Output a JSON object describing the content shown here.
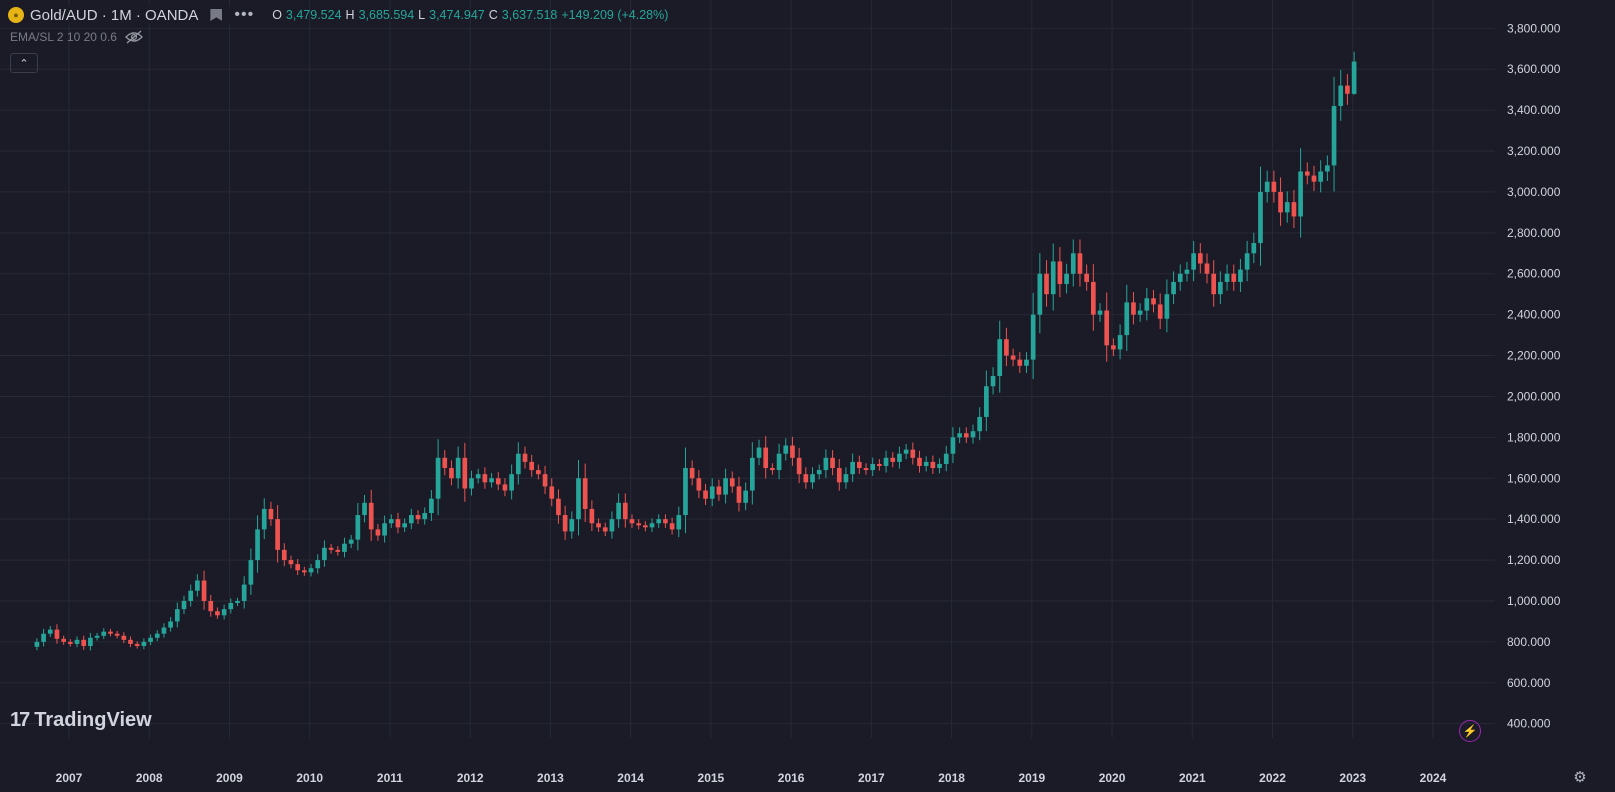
{
  "header": {
    "symbol": "Gold/AUD · 1M · OANDA",
    "ohlc": {
      "o_label": "O",
      "o": "3,479.524",
      "h_label": "H",
      "h": "3,685.594",
      "l_label": "L",
      "l": "3,474.947",
      "c_label": "C",
      "c": "3,637.518",
      "change": "+149.209 (+4.28%)"
    },
    "indicator": "EMA/SL 2 10 20 0.6"
  },
  "branding": {
    "logo_text": "TradingView"
  },
  "icons": {
    "coin": "gold-coin-icon",
    "flag": "flag-icon",
    "more": "more-icon",
    "eye": "eye-off-icon",
    "collapse": "chevron-up-icon",
    "bolt": "lightning-icon",
    "settings": "gear-icon"
  },
  "colors": {
    "background": "#1a1b27",
    "up": "#26a69a",
    "down": "#ef5350",
    "grid": "#262936",
    "axis_text": "#d1d4dc"
  },
  "chart_data": {
    "type": "candlestick",
    "timeframe": "1M",
    "y_ticks": [
      "400.000",
      "600.000",
      "800.000",
      "1,000.000",
      "1,200.000",
      "1,400.000",
      "1,600.000",
      "1,800.000",
      "2,000.000",
      "2,200.000",
      "2,400.000",
      "2,600.000",
      "2,800.000",
      "3,000.000",
      "3,200.000",
      "3,400.000",
      "3,600.000",
      "3,800.000"
    ],
    "x_ticks": [
      "2007",
      "2008",
      "2009",
      "2010",
      "2011",
      "2012",
      "2013",
      "2014",
      "2015",
      "2016",
      "2017",
      "2018",
      "2019",
      "2020",
      "2021",
      "2022",
      "2023",
      "2024"
    ],
    "ylim": [
      330,
      3870
    ],
    "x_start": 2006.6,
    "closes": [
      800,
      840,
      860,
      815,
      800,
      790,
      810,
      780,
      820,
      830,
      850,
      840,
      830,
      810,
      790,
      780,
      800,
      820,
      840,
      870,
      900,
      960,
      1000,
      1050,
      1100,
      1000,
      950,
      930,
      960,
      990,
      1000,
      1080,
      1200,
      1350,
      1450,
      1400,
      1250,
      1200,
      1180,
      1150,
      1140,
      1160,
      1200,
      1260,
      1250,
      1240,
      1280,
      1300,
      1420,
      1480,
      1350,
      1320,
      1380,
      1400,
      1360,
      1380,
      1420,
      1400,
      1430,
      1500,
      1700,
      1650,
      1600,
      1700,
      1550,
      1600,
      1620,
      1580,
      1600,
      1570,
      1540,
      1620,
      1720,
      1680,
      1640,
      1620,
      1560,
      1500,
      1420,
      1340,
      1400,
      1600,
      1450,
      1380,
      1360,
      1340,
      1400,
      1480,
      1400,
      1380,
      1370,
      1360,
      1380,
      1400,
      1380,
      1350,
      1420,
      1650,
      1600,
      1540,
      1500,
      1560,
      1520,
      1600,
      1560,
      1480,
      1540,
      1700,
      1750,
      1650,
      1640,
      1720,
      1760,
      1700,
      1620,
      1580,
      1620,
      1640,
      1700,
      1650,
      1580,
      1620,
      1680,
      1650,
      1640,
      1670,
      1660,
      1700,
      1680,
      1720,
      1740,
      1700,
      1660,
      1680,
      1650,
      1670,
      1720,
      1800,
      1820,
      1800,
      1830,
      1900,
      2050,
      2100,
      2280,
      2200,
      2180,
      2150,
      2180,
      2400,
      2600,
      2500,
      2660,
      2550,
      2600,
      2700,
      2600,
      2560,
      2400,
      2420,
      2250,
      2230,
      2300,
      2460,
      2400,
      2420,
      2480,
      2450,
      2380,
      2500,
      2560,
      2600,
      2620,
      2700,
      2650,
      2600,
      2500,
      2560,
      2600,
      2560,
      2620,
      2700,
      2750,
      3000,
      3050,
      3000,
      2900,
      2950,
      2880,
      3100,
      3080,
      3050,
      3100,
      3130,
      3420,
      3520,
      3480,
      3637
    ],
    "last_ohlc": {
      "o": 3479.524,
      "h": 3685.594,
      "l": 3474.947,
      "c": 3637.518
    }
  }
}
